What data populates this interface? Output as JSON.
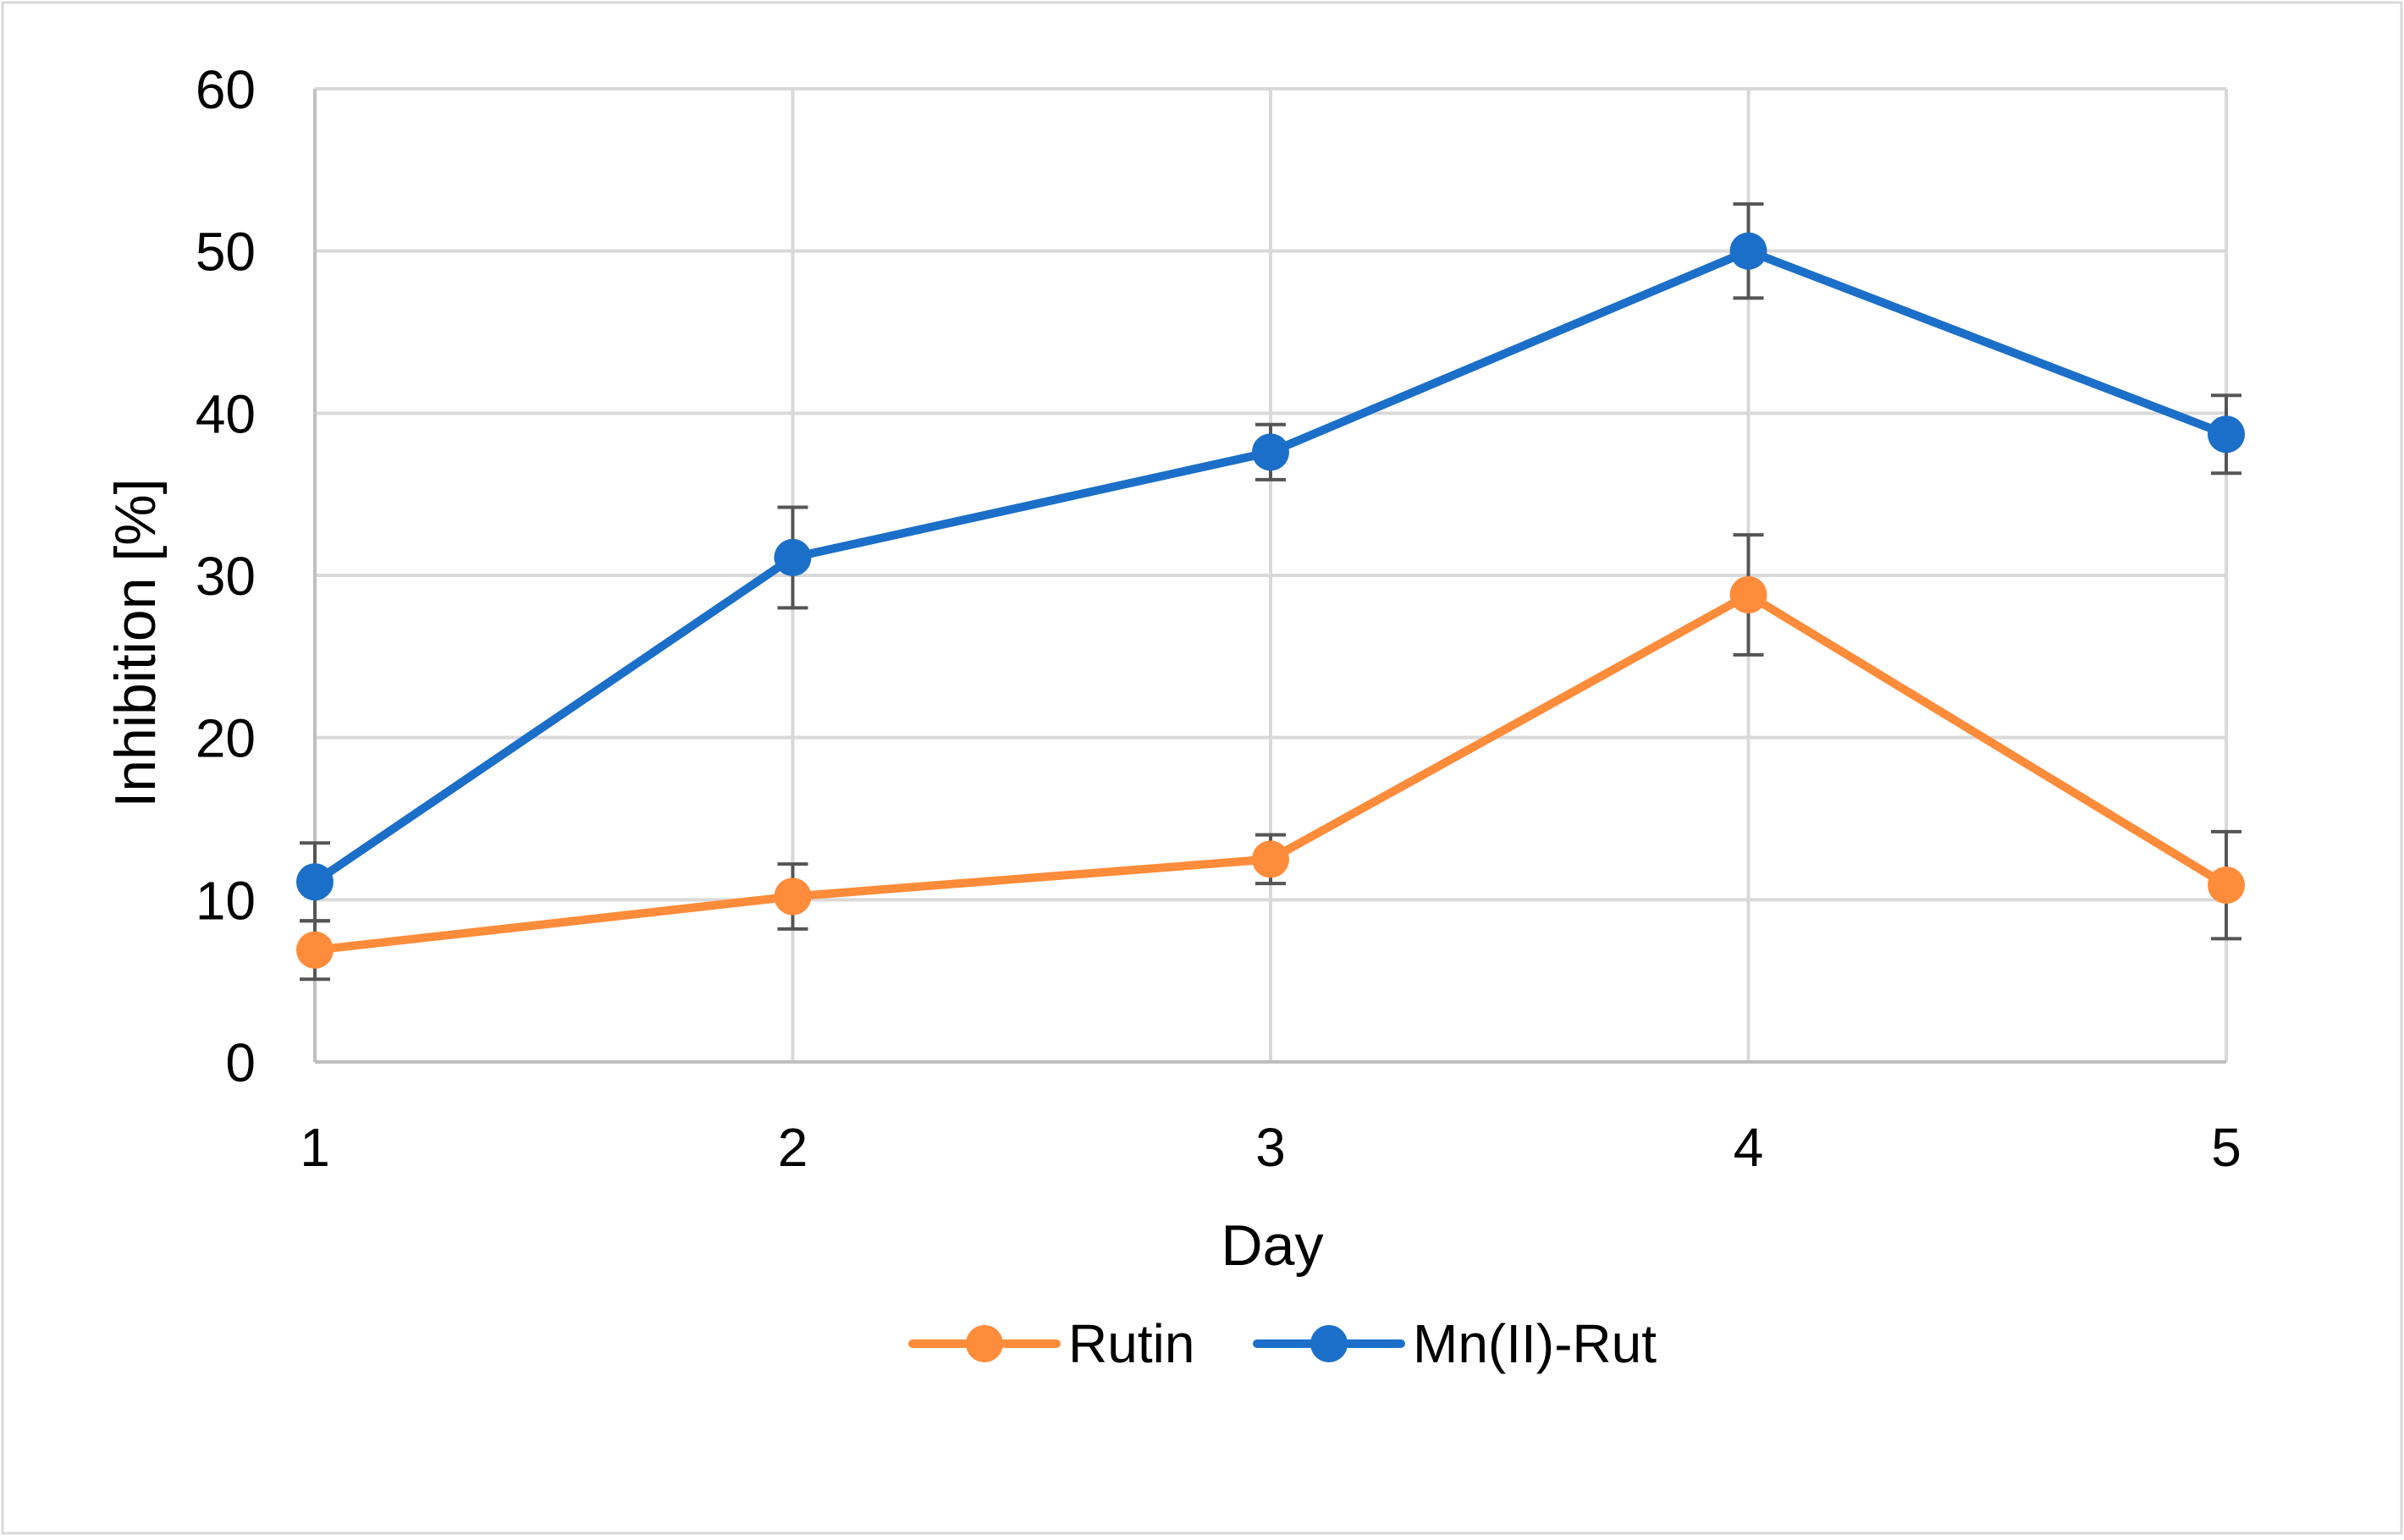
{
  "chart_data": {
    "type": "line",
    "title": "",
    "xlabel": "Day",
    "ylabel": "Inhibition [%]",
    "x": [
      1,
      2,
      3,
      4,
      5
    ],
    "x_tick_labels": [
      "1",
      "2",
      "3",
      "4",
      "5"
    ],
    "ylim": [
      0,
      60
    ],
    "y_ticks": [
      0,
      10,
      20,
      30,
      40,
      50,
      60
    ],
    "y_tick_labels": [
      "0",
      "10",
      "20",
      "30",
      "40",
      "50",
      "60"
    ],
    "grid": true,
    "legend_position": "bottom",
    "series": [
      {
        "name": "Rutin",
        "color": "#FF8C3A",
        "values": [
          6.9,
          10.2,
          12.5,
          28.8,
          10.9
        ],
        "error": [
          1.8,
          2.0,
          1.5,
          3.7,
          3.3
        ]
      },
      {
        "name": "Mn(II)-Rut",
        "color": "#1B6FC8",
        "values": [
          11.1,
          31.1,
          37.6,
          50.0,
          38.7
        ],
        "error": [
          2.4,
          3.1,
          1.7,
          2.9,
          2.4
        ]
      }
    ],
    "error_bar_color": "#555555",
    "grid_color": "#D9D9D9",
    "axis_color": "#BFBFBF",
    "frame_color": "#D9D9D9"
  }
}
